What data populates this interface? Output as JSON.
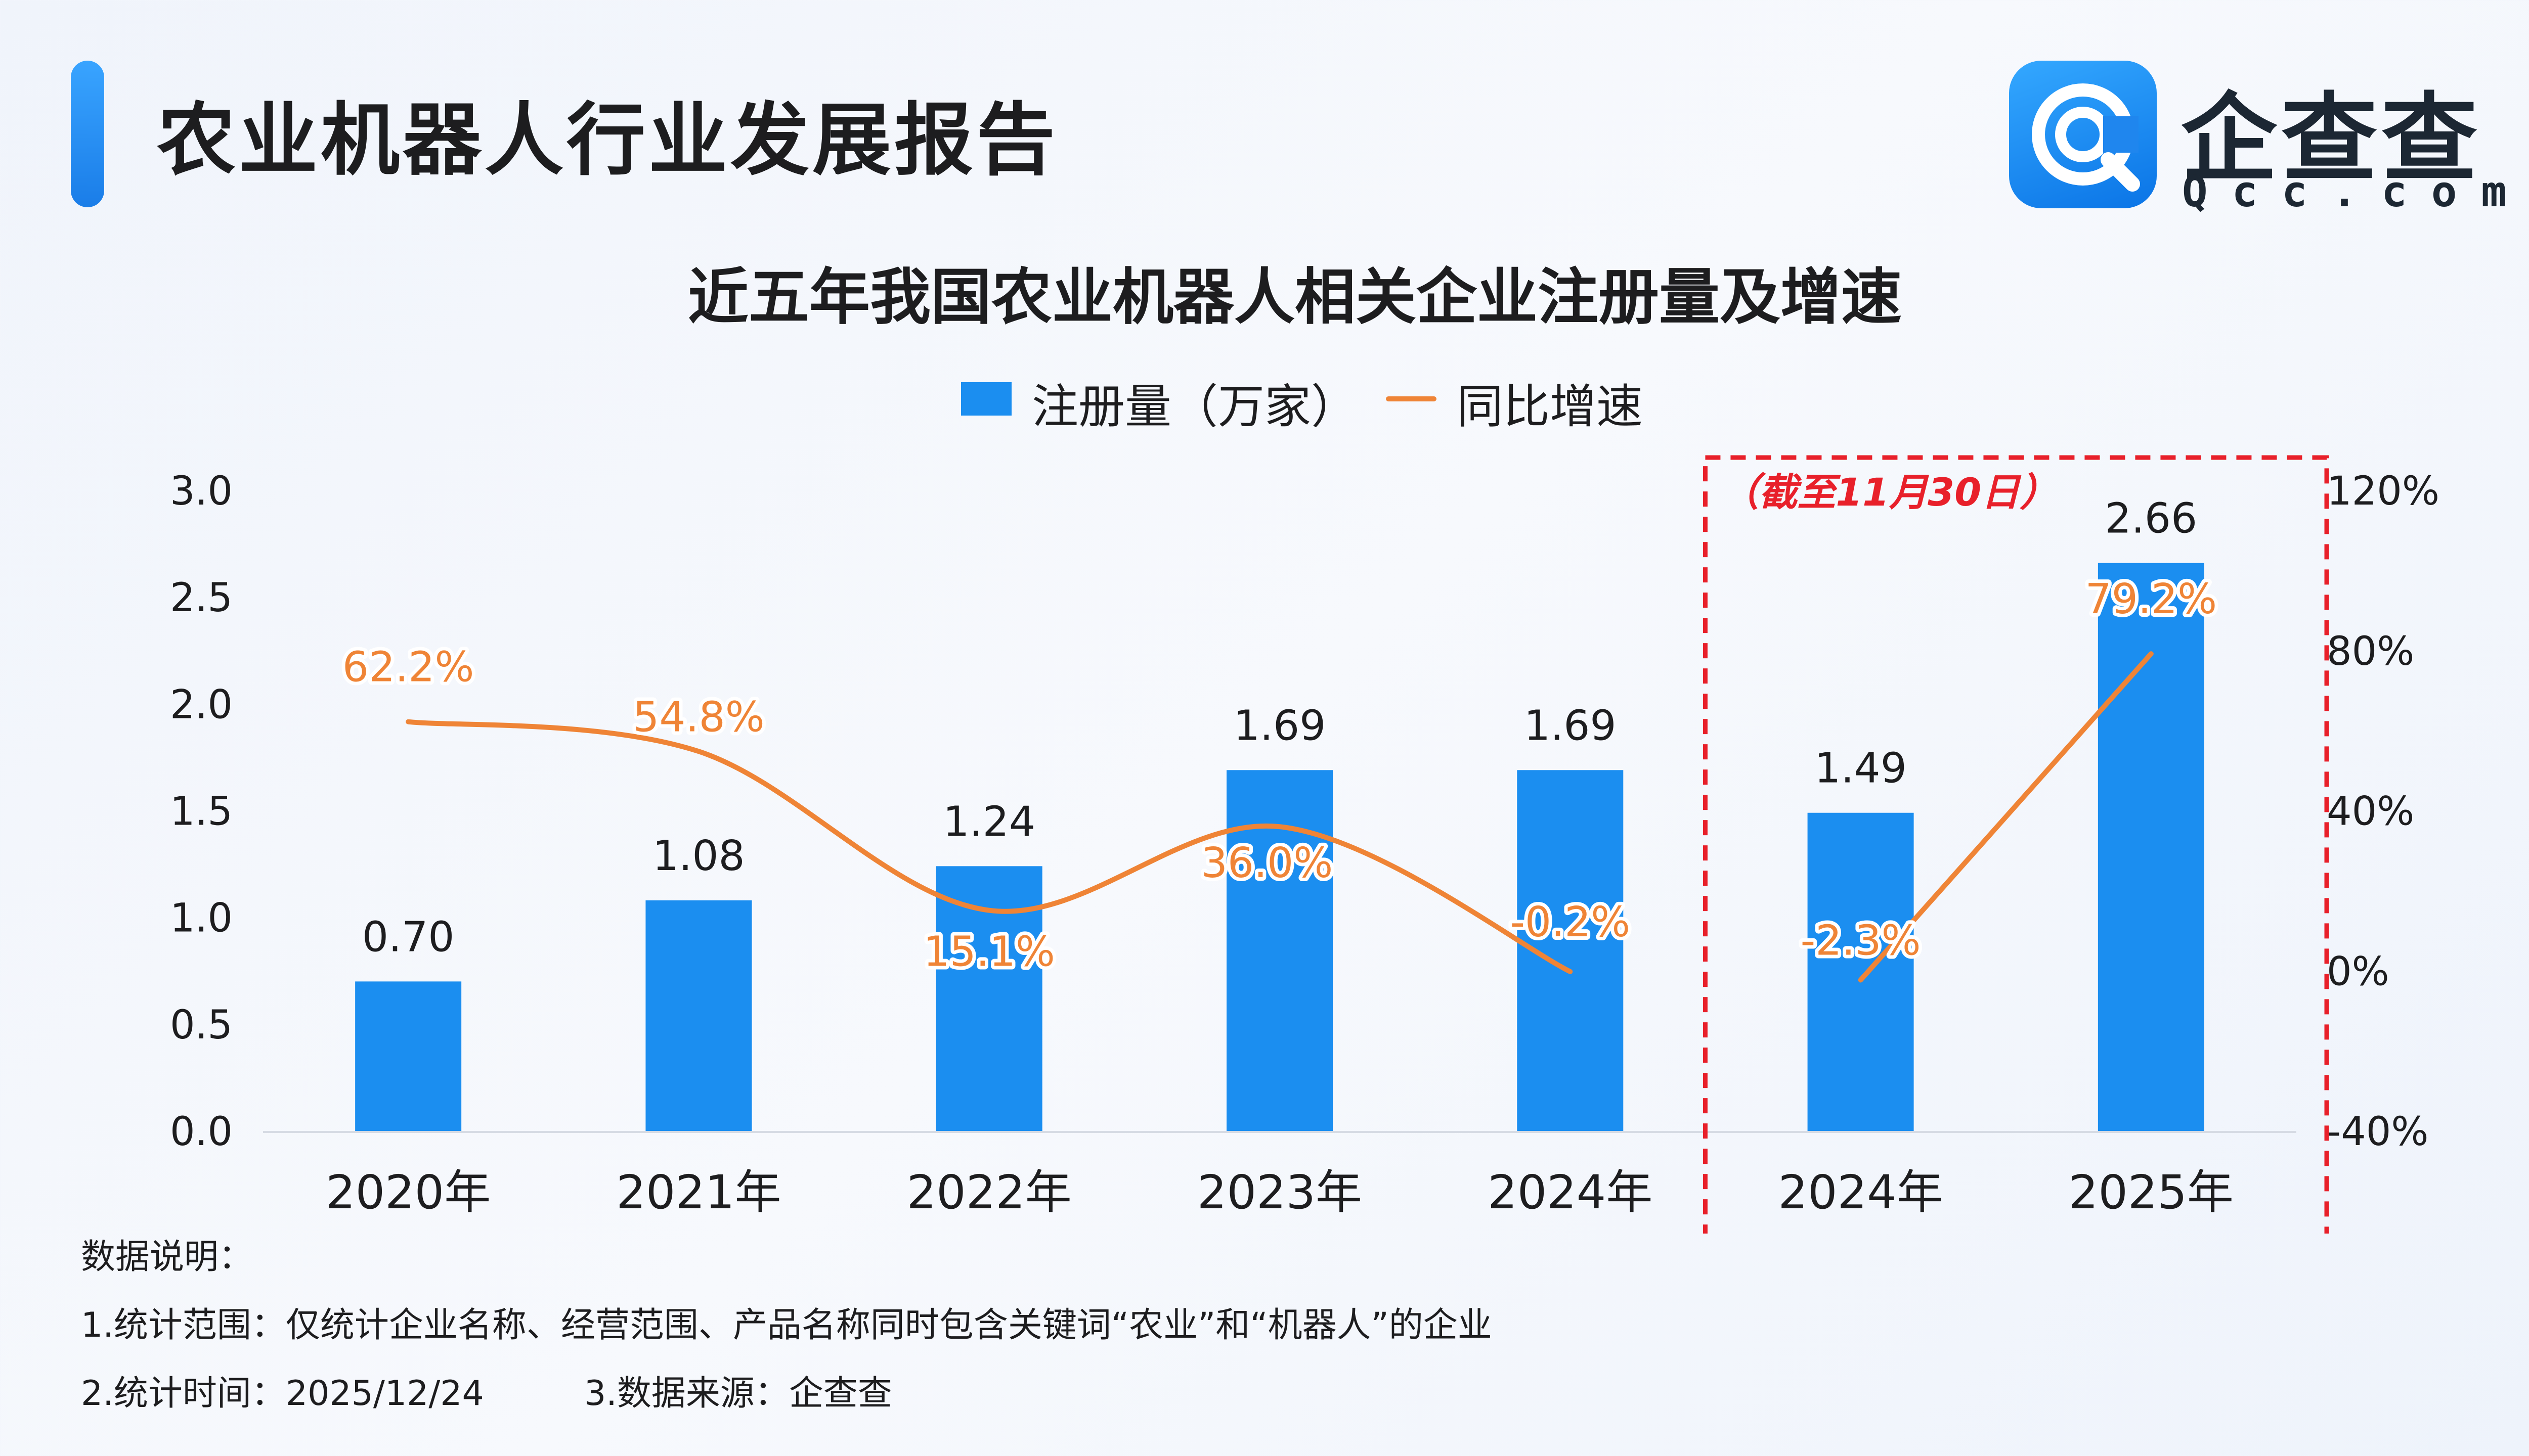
{
  "header": {
    "report_title": "农业机器人行业发展报告",
    "logo_name": "企查查",
    "logo_domain": "Qcc.com",
    "brand_color": "#1a7de8"
  },
  "chart_data": {
    "type": "bar",
    "title": "近五年我国农业机器人相关企业注册量及增速",
    "categories": [
      "2020年",
      "2021年",
      "2022年",
      "2023年",
      "2024年",
      "2024年",
      "2025年"
    ],
    "series": [
      {
        "name": "注册量（万家）",
        "type": "bar",
        "axis": "left",
        "values": [
          0.7,
          1.08,
          1.24,
          1.69,
          1.69,
          1.49,
          2.66
        ],
        "labels": [
          "0.70",
          "1.08",
          "1.24",
          "1.69",
          "1.69",
          "1.49",
          "2.66"
        ],
        "color": "#1b8ef0"
      },
      {
        "name": "同比增速",
        "type": "line",
        "axis": "right",
        "values": [
          62.2,
          54.8,
          15.1,
          36.0,
          -0.2,
          -2.3,
          79.2
        ],
        "labels": [
          "62.2%",
          "54.8%",
          "15.1%",
          "36.0%",
          "-0.2%",
          "-2.3%",
          "79.2%"
        ],
        "color": "#ef8436",
        "segments": [
          [
            0,
            4
          ],
          [
            5,
            6
          ]
        ]
      }
    ],
    "y_left": {
      "min": 0,
      "max": 3.0,
      "ticks": [
        "0.0",
        "0.5",
        "1.0",
        "1.5",
        "2.0",
        "2.5",
        "3.0"
      ]
    },
    "y_right": {
      "min": -40,
      "max": 120,
      "ticks": [
        "-40%",
        "0%",
        "40%",
        "80%",
        "120%"
      ]
    },
    "highlight": {
      "from_index": 5,
      "to_index": 6,
      "label": "（截至11月30日）",
      "color": "#e8202a"
    },
    "legend_position": "top-center",
    "grid": false
  },
  "notes": {
    "heading": "数据说明：",
    "scope": "1.统计范围：仅统计企业名称、经营范围、产品名称同时包含关键词“农业”和“机器人”的企业",
    "time": "2.统计时间：2025/12/24",
    "source": "3.数据来源：企查查"
  }
}
